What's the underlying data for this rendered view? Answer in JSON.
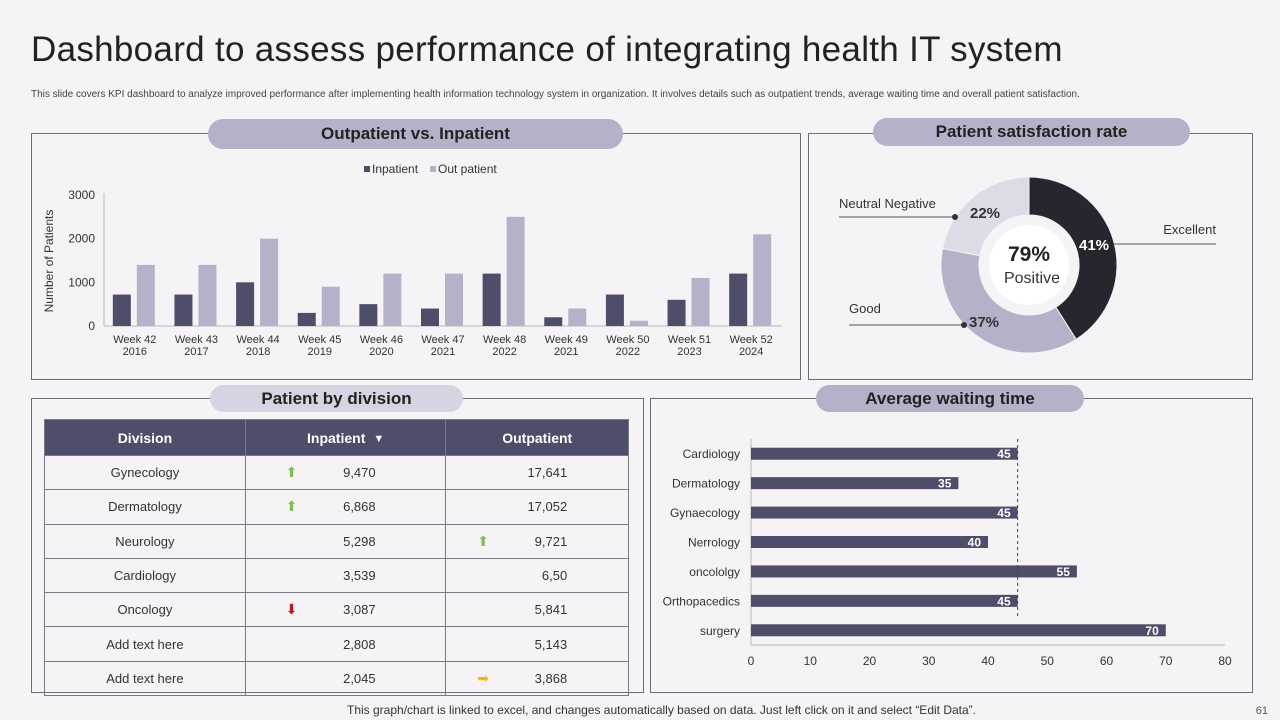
{
  "title": "Dashboard to assess performance of integrating health IT system",
  "subtitle": "This slide covers KPI dashboard to analyze improved performance after implementing health information technology system in organization. It involves details such as outpatient trends, average waiting time and overall patient satisfaction.",
  "footer": "This graph/chart is linked to excel, and changes automatically based on data. Just left click on it and select “Edit Data”.",
  "page_number": "61",
  "colors": {
    "dark": "#4e4d6a",
    "light": "#b3b2c9",
    "donut_dark": "#27262f",
    "donut_light": "#dcdbe6",
    "up": "#7cc04f",
    "down": "#b51a1a",
    "right": "#f4b41a"
  },
  "panels": {
    "outpatient": {
      "title": "Outpatient vs. Inpatient"
    },
    "satisfaction": {
      "title": "Patient satisfaction rate",
      "center_value": "79%",
      "center_label": "Positive"
    },
    "division": {
      "title": "Patient by division"
    },
    "waiting": {
      "title": "Average waiting time"
    }
  },
  "chart_data": [
    {
      "type": "bar",
      "title": "Outpatient vs. Inpatient",
      "ylabel": "Number of Patients",
      "xlabel": "",
      "ylim": [
        0,
        3000
      ],
      "yticks": [
        0,
        1000,
        2000,
        3000
      ],
      "legend": "top-center",
      "categories": [
        [
          "Week 42",
          "2016"
        ],
        [
          "Week 43",
          "2017"
        ],
        [
          "Week 44",
          "2018"
        ],
        [
          "Week 45",
          "2019"
        ],
        [
          "Week 46",
          "2020"
        ],
        [
          "Week 47",
          "2021"
        ],
        [
          "Week 48",
          "2022"
        ],
        [
          "Week 49",
          "2021"
        ],
        [
          "Week 50",
          "2022"
        ],
        [
          "Week 51",
          "2023"
        ],
        [
          "Week 52",
          "2024"
        ]
      ],
      "series": [
        {
          "name": "Inpatient",
          "color": "#4e4d6a",
          "values": [
            720,
            720,
            1000,
            300,
            500,
            400,
            1200,
            200,
            720,
            600,
            1200
          ]
        },
        {
          "name": "Out patient",
          "color": "#b3b2c9",
          "values": [
            1400,
            1400,
            2000,
            900,
            1200,
            1200,
            2500,
            400,
            120,
            1100,
            2100
          ]
        }
      ]
    },
    {
      "type": "pie",
      "title": "Patient satisfaction rate",
      "slices": [
        {
          "name": "Excellent",
          "value": 41,
          "label": "41%",
          "color": "#27262f"
        },
        {
          "name": "Good",
          "value": 37,
          "label": "37%",
          "color": "#b3b2c9"
        },
        {
          "name": "Neutral Negative",
          "value": 22,
          "label": "22%",
          "color": "#dcdbe6"
        }
      ]
    },
    {
      "type": "bar",
      "orientation": "horizontal",
      "title": "Average waiting time",
      "xlim": [
        0,
        80
      ],
      "xticks": [
        0,
        10,
        20,
        30,
        40,
        50,
        60,
        70,
        80
      ],
      "reference_line": 45,
      "categories": [
        "Cardiology",
        "Dermatology",
        "Gynaecology",
        "Nerrology",
        "oncololgy",
        "Orthopacedics",
        "surgery"
      ],
      "values": [
        45,
        35,
        45,
        40,
        55,
        45,
        70
      ],
      "color": "#4e4d6a"
    },
    {
      "type": "table",
      "title": "Patient by division",
      "columns": [
        "Division",
        "Inpatient",
        "Outpatient"
      ],
      "rows": [
        {
          "division": "Gynecology",
          "inpatient": "9,470",
          "inpatient_icon": "up-arrow-icon",
          "outpatient": "17,641",
          "outpatient_icon": ""
        },
        {
          "division": "Dermatology",
          "inpatient": "6,868",
          "inpatient_icon": "up-arrow-icon",
          "outpatient": "17,052",
          "outpatient_icon": ""
        },
        {
          "division": "Neurology",
          "inpatient": "5,298",
          "inpatient_icon": "",
          "outpatient": "9,721",
          "outpatient_icon": "up-arrow-icon"
        },
        {
          "division": "Cardiology",
          "inpatient": "3,539",
          "inpatient_icon": "",
          "outpatient": "6,50",
          "outpatient_icon": ""
        },
        {
          "division": "Oncology",
          "inpatient": "3,087",
          "inpatient_icon": "down-arrow-icon",
          "outpatient": "5,841",
          "outpatient_icon": ""
        },
        {
          "division": "Add text here",
          "inpatient": "2,808",
          "inpatient_icon": "",
          "outpatient": "5,143",
          "outpatient_icon": ""
        },
        {
          "division": "Add text here",
          "inpatient": "2,045",
          "inpatient_icon": "",
          "outpatient": "3,868",
          "outpatient_icon": "right-arrow-icon"
        }
      ]
    }
  ]
}
